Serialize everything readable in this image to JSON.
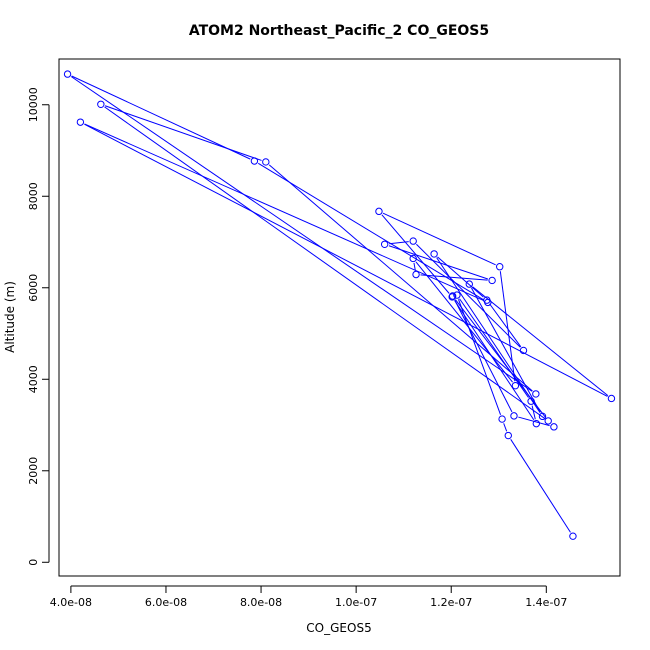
{
  "chart_data": {
    "type": "line",
    "title": "ATOM2 Northeast_Pacific_2 CO_GEOS5",
    "xlabel": "CO_GEOS5",
    "ylabel": "Altitude (m)",
    "xlim": [
      3.75e-08,
      1.555e-07
    ],
    "ylim": [
      -300,
      11000
    ],
    "x_ticks": [
      {
        "value": 4e-08,
        "label": "4.0e-08"
      },
      {
        "value": 6e-08,
        "label": "6.0e-08"
      },
      {
        "value": 8e-08,
        "label": "8.0e-08"
      },
      {
        "value": 1e-07,
        "label": "1.0e-07"
      },
      {
        "value": 1.2e-07,
        "label": "1.2e-07"
      },
      {
        "value": 1.4e-07,
        "label": "1.4e-07"
      }
    ],
    "y_ticks": [
      {
        "value": 0,
        "label": "0"
      },
      {
        "value": 2000,
        "label": "2000"
      },
      {
        "value": 4000,
        "label": "4000"
      },
      {
        "value": 6000,
        "label": "6000"
      },
      {
        "value": 8000,
        "label": "8000"
      },
      {
        "value": 10000,
        "label": "10000"
      }
    ],
    "grid": false,
    "legend": "none",
    "series": [
      {
        "color": "#0000ff",
        "marker": "open-circle",
        "points": [
          {
            "x": 1.456e-07,
            "y": 570
          },
          {
            "x": 1.32e-07,
            "y": 2770
          },
          {
            "x": 1.307e-07,
            "y": 3130
          },
          {
            "x": 1.212e-07,
            "y": 5840
          },
          {
            "x": 1.368e-07,
            "y": 3520
          },
          {
            "x": 1.379e-07,
            "y": 3030
          },
          {
            "x": 1.202e-07,
            "y": 5800
          },
          {
            "x": 1.048e-07,
            "y": 7670
          },
          {
            "x": 1.302e-07,
            "y": 6460
          },
          {
            "x": 1.335e-07,
            "y": 3860
          },
          {
            "x": 1.12e-07,
            "y": 6640
          },
          {
            "x": 1.126e-07,
            "y": 6290
          },
          {
            "x": 1.286e-07,
            "y": 6160
          },
          {
            "x": 1.06e-07,
            "y": 6950
          },
          {
            "x": 1.12e-07,
            "y": 7020
          },
          {
            "x": 1.352e-07,
            "y": 4630
          },
          {
            "x": 1.275e-07,
            "y": 5730
          },
          {
            "x": 1.164e-07,
            "y": 6740
          },
          {
            "x": 1.392e-07,
            "y": 3190
          },
          {
            "x": 1.238e-07,
            "y": 6080
          },
          {
            "x": 1.537e-07,
            "y": 3580
          },
          {
            "x": 4.2e-08,
            "y": 9620
          },
          {
            "x": 1.277e-07,
            "y": 5680
          },
          {
            "x": 7.86e-08,
            "y": 8770
          },
          {
            "x": 3.93e-08,
            "y": 10670
          },
          {
            "x": 1.378e-07,
            "y": 3680
          },
          {
            "x": 8.1e-08,
            "y": 8750
          },
          {
            "x": 4.63e-08,
            "y": 10010
          },
          {
            "x": 1.404e-07,
            "y": 3090
          },
          {
            "x": 1.203e-07,
            "y": 5820
          },
          {
            "x": 1.332e-07,
            "y": 3200
          },
          {
            "x": 1.416e-07,
            "y": 2960
          }
        ]
      }
    ]
  }
}
